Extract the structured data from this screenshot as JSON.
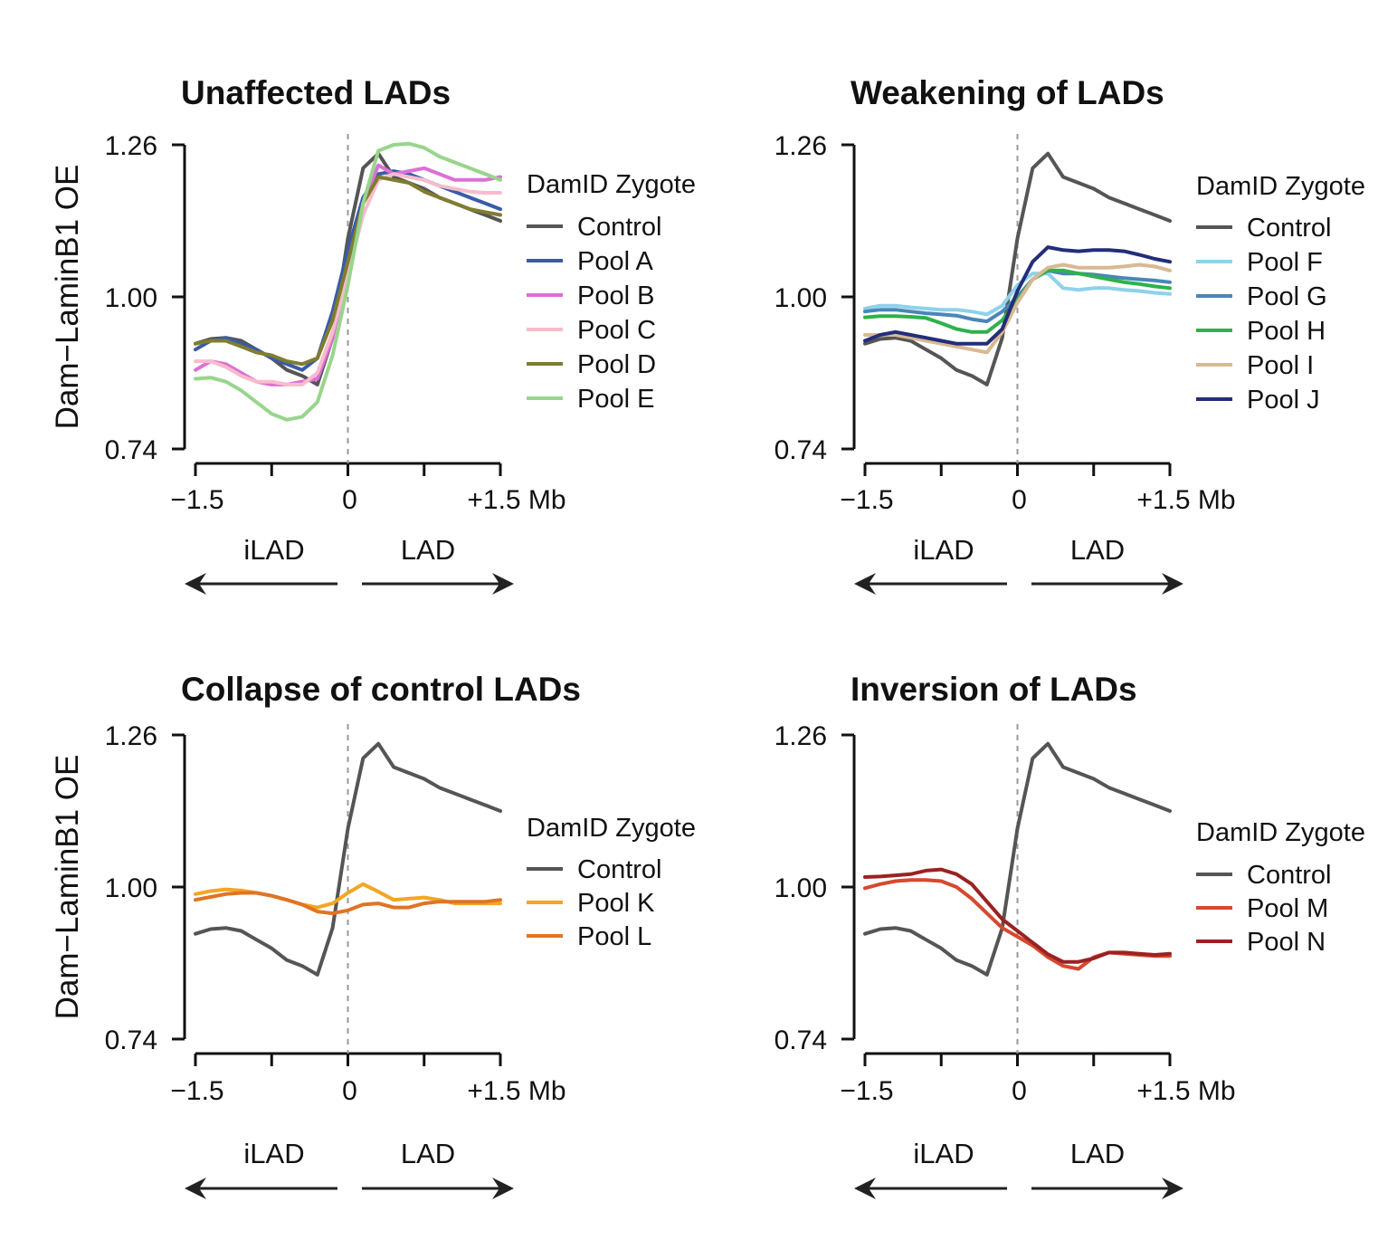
{
  "chart_data": [
    {
      "type": "line",
      "title": "Unaffected LADs",
      "ylabel": "Dam−LaminB1 OE",
      "ylim": [
        0.74,
        1.26
      ],
      "yticks": [
        "1.26",
        "1.00",
        "0.74"
      ],
      "xlim": [
        -1.5,
        1.5
      ],
      "xtick_labels": [
        "−1.5",
        "0",
        "+1.5 Mb"
      ],
      "regions": [
        "iLAD",
        "LAD"
      ],
      "legend_title": "DamID Zygote",
      "series": [
        {
          "name": "Control",
          "color": "#555555",
          "x": [
            -1.5,
            -1.35,
            -1.2,
            -1.05,
            -0.9,
            -0.75,
            -0.6,
            -0.45,
            -0.3,
            -0.15,
            0,
            0.15,
            0.3,
            0.45,
            0.6,
            0.75,
            0.9,
            1.05,
            1.2,
            1.35,
            1.5
          ],
          "y": [
            0.92,
            0.928,
            0.93,
            0.925,
            0.91,
            0.895,
            0.875,
            0.865,
            0.85,
            0.93,
            1.1,
            1.22,
            1.245,
            1.205,
            1.195,
            1.185,
            1.17,
            1.16,
            1.15,
            1.14,
            1.13
          ]
        },
        {
          "name": "Pool A",
          "color": "#3a5ba8",
          "x": [
            -1.5,
            -1.35,
            -1.2,
            -1.05,
            -0.9,
            -0.75,
            -0.6,
            -0.45,
            -0.3,
            -0.15,
            0,
            0.15,
            0.3,
            0.45,
            0.6,
            0.75,
            0.9,
            1.05,
            1.2,
            1.35,
            1.5
          ],
          "y": [
            0.91,
            0.925,
            0.93,
            0.92,
            0.91,
            0.895,
            0.885,
            0.875,
            0.895,
            0.975,
            1.08,
            1.17,
            1.21,
            1.215,
            1.21,
            1.2,
            1.19,
            1.18,
            1.17,
            1.16,
            1.15
          ]
        },
        {
          "name": "Pool B",
          "color": "#de6fd6",
          "x": [
            -1.5,
            -1.35,
            -1.2,
            -1.05,
            -0.9,
            -0.75,
            -0.6,
            -0.45,
            -0.3,
            -0.15,
            0,
            0.15,
            0.3,
            0.45,
            0.6,
            0.75,
            0.9,
            1.05,
            1.2,
            1.35,
            1.5
          ],
          "y": [
            0.875,
            0.89,
            0.885,
            0.87,
            0.855,
            0.85,
            0.85,
            0.855,
            0.86,
            0.93,
            1.05,
            1.16,
            1.225,
            1.21,
            1.215,
            1.22,
            1.21,
            1.2,
            1.2,
            1.2,
            1.205
          ]
        },
        {
          "name": "Pool C",
          "color": "#f7bccb",
          "x": [
            -1.5,
            -1.35,
            -1.2,
            -1.05,
            -0.9,
            -0.75,
            -0.6,
            -0.45,
            -0.3,
            -0.15,
            0,
            0.15,
            0.3,
            0.45,
            0.6,
            0.75,
            0.9,
            1.05,
            1.2,
            1.35,
            1.5
          ],
          "y": [
            0.89,
            0.89,
            0.88,
            0.865,
            0.855,
            0.855,
            0.85,
            0.85,
            0.87,
            0.94,
            1.04,
            1.14,
            1.2,
            1.21,
            1.205,
            1.2,
            1.19,
            1.185,
            1.18,
            1.178,
            1.178
          ]
        },
        {
          "name": "Pool D",
          "color": "#7f7d2f",
          "x": [
            -1.5,
            -1.35,
            -1.2,
            -1.05,
            -0.9,
            -0.75,
            -0.6,
            -0.45,
            -0.3,
            -0.15,
            0,
            0.15,
            0.3,
            0.45,
            0.6,
            0.75,
            0.9,
            1.05,
            1.2,
            1.35,
            1.5
          ],
          "y": [
            0.92,
            0.925,
            0.925,
            0.915,
            0.905,
            0.9,
            0.89,
            0.885,
            0.895,
            0.96,
            1.06,
            1.16,
            1.205,
            1.2,
            1.195,
            1.18,
            1.17,
            1.16,
            1.15,
            1.145,
            1.14
          ]
        },
        {
          "name": "Pool E",
          "color": "#98d58c",
          "x": [
            -1.5,
            -1.35,
            -1.2,
            -1.05,
            -0.9,
            -0.75,
            -0.6,
            -0.45,
            -0.3,
            -0.15,
            0,
            0.15,
            0.3,
            0.45,
            0.6,
            0.75,
            0.9,
            1.05,
            1.2,
            1.35,
            1.5
          ],
          "y": [
            0.86,
            0.862,
            0.855,
            0.84,
            0.82,
            0.8,
            0.79,
            0.795,
            0.82,
            0.9,
            1.02,
            1.16,
            1.25,
            1.26,
            1.262,
            1.255,
            1.24,
            1.23,
            1.22,
            1.21,
            1.2
          ]
        }
      ]
    },
    {
      "type": "line",
      "title": "Weakening of LADs",
      "ylabel": "",
      "ylim": [
        0.74,
        1.26
      ],
      "yticks": [
        "1.26",
        "1.00",
        "0.74"
      ],
      "xlim": [
        -1.5,
        1.5
      ],
      "xtick_labels": [
        "−1.5",
        "0",
        "+1.5 Mb"
      ],
      "regions": [
        "iLAD",
        "LAD"
      ],
      "legend_title": "DamID Zygote",
      "series": [
        {
          "name": "Control",
          "color": "#555555",
          "x": [
            -1.5,
            -1.35,
            -1.2,
            -1.05,
            -0.9,
            -0.75,
            -0.6,
            -0.45,
            -0.3,
            -0.15,
            0,
            0.15,
            0.3,
            0.45,
            0.6,
            0.75,
            0.9,
            1.05,
            1.2,
            1.35,
            1.5
          ],
          "y": [
            0.92,
            0.928,
            0.93,
            0.925,
            0.91,
            0.895,
            0.875,
            0.865,
            0.85,
            0.93,
            1.1,
            1.22,
            1.245,
            1.205,
            1.195,
            1.185,
            1.17,
            1.16,
            1.15,
            1.14,
            1.13
          ]
        },
        {
          "name": "Pool F",
          "color": "#8ed1ea",
          "x": [
            -1.5,
            -1.35,
            -1.2,
            -1.05,
            -0.9,
            -0.75,
            -0.6,
            -0.45,
            -0.3,
            -0.15,
            0,
            0.15,
            0.3,
            0.45,
            0.6,
            0.75,
            0.9,
            1.05,
            1.2,
            1.35,
            1.5
          ],
          "y": [
            0.98,
            0.985,
            0.985,
            0.982,
            0.98,
            0.978,
            0.978,
            0.975,
            0.97,
            0.985,
            1.02,
            1.04,
            1.04,
            1.015,
            1.012,
            1.015,
            1.015,
            1.012,
            1.01,
            1.007,
            1.005
          ]
        },
        {
          "name": "Pool G",
          "color": "#4a86b8",
          "x": [
            -1.5,
            -1.35,
            -1.2,
            -1.05,
            -0.9,
            -0.75,
            -0.6,
            -0.45,
            -0.3,
            -0.15,
            0,
            0.15,
            0.3,
            0.45,
            0.6,
            0.75,
            0.9,
            1.05,
            1.2,
            1.35,
            1.5
          ],
          "y": [
            0.975,
            0.978,
            0.978,
            0.975,
            0.972,
            0.97,
            0.968,
            0.962,
            0.958,
            0.975,
            1.0,
            1.03,
            1.045,
            1.04,
            1.04,
            1.038,
            1.035,
            1.032,
            1.03,
            1.028,
            1.025
          ]
        },
        {
          "name": "Pool H",
          "color": "#2fb14b",
          "x": [
            -1.5,
            -1.35,
            -1.2,
            -1.05,
            -0.9,
            -0.75,
            -0.6,
            -0.45,
            -0.3,
            -0.15,
            0,
            0.15,
            0.3,
            0.45,
            0.6,
            0.75,
            0.9,
            1.05,
            1.2,
            1.35,
            1.5
          ],
          "y": [
            0.965,
            0.967,
            0.967,
            0.966,
            0.964,
            0.955,
            0.945,
            0.94,
            0.94,
            0.96,
            0.995,
            1.03,
            1.045,
            1.045,
            1.04,
            1.035,
            1.03,
            1.025,
            1.022,
            1.018,
            1.015
          ]
        },
        {
          "name": "Pool I",
          "color": "#d8b993",
          "x": [
            -1.5,
            -1.35,
            -1.2,
            -1.05,
            -0.9,
            -0.75,
            -0.6,
            -0.45,
            -0.3,
            -0.15,
            0,
            0.15,
            0.3,
            0.45,
            0.6,
            0.75,
            0.9,
            1.05,
            1.2,
            1.35,
            1.5
          ],
          "y": [
            0.935,
            0.935,
            0.935,
            0.93,
            0.925,
            0.92,
            0.915,
            0.91,
            0.905,
            0.94,
            0.99,
            1.03,
            1.05,
            1.055,
            1.05,
            1.05,
            1.05,
            1.052,
            1.055,
            1.052,
            1.045
          ]
        },
        {
          "name": "Pool J",
          "color": "#232e7a",
          "x": [
            -1.5,
            -1.35,
            -1.2,
            -1.05,
            -0.9,
            -0.75,
            -0.6,
            -0.45,
            -0.3,
            -0.15,
            0,
            0.15,
            0.3,
            0.45,
            0.6,
            0.75,
            0.9,
            1.05,
            1.2,
            1.35,
            1.5
          ],
          "y": [
            0.925,
            0.935,
            0.94,
            0.935,
            0.93,
            0.925,
            0.92,
            0.92,
            0.92,
            0.945,
            1.01,
            1.06,
            1.085,
            1.08,
            1.078,
            1.08,
            1.08,
            1.078,
            1.072,
            1.065,
            1.06
          ]
        }
      ]
    },
    {
      "type": "line",
      "title": "Collapse of control LADs",
      "ylabel": "Dam−LaminB1 OE",
      "ylim": [
        0.74,
        1.26
      ],
      "yticks": [
        "1.26",
        "1.00",
        "0.74"
      ],
      "xlim": [
        -1.5,
        1.5
      ],
      "xtick_labels": [
        "−1.5",
        "0",
        "+1.5 Mb"
      ],
      "regions": [
        "iLAD",
        "LAD"
      ],
      "legend_title": "DamID Zygote",
      "series": [
        {
          "name": "Control",
          "color": "#555555",
          "x": [
            -1.5,
            -1.35,
            -1.2,
            -1.05,
            -0.9,
            -0.75,
            -0.6,
            -0.45,
            -0.3,
            -0.15,
            0,
            0.15,
            0.3,
            0.45,
            0.6,
            0.75,
            0.9,
            1.05,
            1.2,
            1.35,
            1.5
          ],
          "y": [
            0.92,
            0.928,
            0.93,
            0.925,
            0.91,
            0.895,
            0.875,
            0.865,
            0.85,
            0.93,
            1.1,
            1.22,
            1.245,
            1.205,
            1.195,
            1.185,
            1.17,
            1.16,
            1.15,
            1.14,
            1.13
          ]
        },
        {
          "name": "Pool K",
          "color": "#f3a623",
          "x": [
            -1.5,
            -1.35,
            -1.2,
            -1.05,
            -0.9,
            -0.75,
            -0.6,
            -0.45,
            -0.3,
            -0.15,
            0,
            0.15,
            0.3,
            0.45,
            0.6,
            0.75,
            0.9,
            1.05,
            1.2,
            1.35,
            1.5
          ],
          "y": [
            0.988,
            0.993,
            0.996,
            0.994,
            0.99,
            0.985,
            0.978,
            0.97,
            0.965,
            0.972,
            0.99,
            1.005,
            0.992,
            0.978,
            0.98,
            0.982,
            0.978,
            0.972,
            0.972,
            0.972,
            0.972
          ]
        },
        {
          "name": "Pool L",
          "color": "#e07425",
          "x": [
            -1.5,
            -1.35,
            -1.2,
            -1.05,
            -0.9,
            -0.75,
            -0.6,
            -0.45,
            -0.3,
            -0.15,
            0,
            0.15,
            0.3,
            0.45,
            0.6,
            0.75,
            0.9,
            1.05,
            1.2,
            1.35,
            1.5
          ],
          "y": [
            0.978,
            0.983,
            0.988,
            0.99,
            0.99,
            0.985,
            0.978,
            0.97,
            0.958,
            0.955,
            0.96,
            0.97,
            0.972,
            0.965,
            0.965,
            0.972,
            0.975,
            0.975,
            0.975,
            0.975,
            0.978
          ]
        }
      ]
    },
    {
      "type": "line",
      "title": "Inversion of LADs",
      "ylabel": "",
      "ylim": [
        0.74,
        1.26
      ],
      "yticks": [
        "1.26",
        "1.00",
        "0.74"
      ],
      "xlim": [
        -1.5,
        1.5
      ],
      "xtick_labels": [
        "−1.5",
        "0",
        "+1.5 Mb"
      ],
      "regions": [
        "iLAD",
        "LAD"
      ],
      "legend_title": "DamID Zygote",
      "series": [
        {
          "name": "Control",
          "color": "#555555",
          "x": [
            -1.5,
            -1.35,
            -1.2,
            -1.05,
            -0.9,
            -0.75,
            -0.6,
            -0.45,
            -0.3,
            -0.15,
            0,
            0.15,
            0.3,
            0.45,
            0.6,
            0.75,
            0.9,
            1.05,
            1.2,
            1.35,
            1.5
          ],
          "y": [
            0.92,
            0.928,
            0.93,
            0.925,
            0.91,
            0.895,
            0.875,
            0.865,
            0.85,
            0.93,
            1.1,
            1.22,
            1.245,
            1.205,
            1.195,
            1.185,
            1.17,
            1.16,
            1.15,
            1.14,
            1.13
          ]
        },
        {
          "name": "Pool M",
          "color": "#d6492e",
          "x": [
            -1.5,
            -1.35,
            -1.2,
            -1.05,
            -0.9,
            -0.75,
            -0.6,
            -0.45,
            -0.3,
            -0.15,
            0,
            0.15,
            0.3,
            0.45,
            0.6,
            0.75,
            0.9,
            1.05,
            1.2,
            1.35,
            1.5
          ],
          "y": [
            0.998,
            1.005,
            1.01,
            1.012,
            1.012,
            1.01,
            1.0,
            0.98,
            0.955,
            0.93,
            0.915,
            0.9,
            0.88,
            0.865,
            0.86,
            0.88,
            0.888,
            0.886,
            0.884,
            0.882,
            0.882
          ]
        },
        {
          "name": "Pool N",
          "color": "#9b2222",
          "x": [
            -1.5,
            -1.35,
            -1.2,
            -1.05,
            -0.9,
            -0.75,
            -0.6,
            -0.45,
            -0.3,
            -0.15,
            0,
            0.15,
            0.3,
            0.45,
            0.6,
            0.75,
            0.9,
            1.05,
            1.2,
            1.35,
            1.5
          ],
          "y": [
            1.017,
            1.018,
            1.02,
            1.022,
            1.028,
            1.03,
            1.022,
            1.005,
            0.975,
            0.945,
            0.925,
            0.905,
            0.885,
            0.872,
            0.872,
            0.878,
            0.888,
            0.888,
            0.886,
            0.884,
            0.886
          ]
        }
      ]
    }
  ]
}
